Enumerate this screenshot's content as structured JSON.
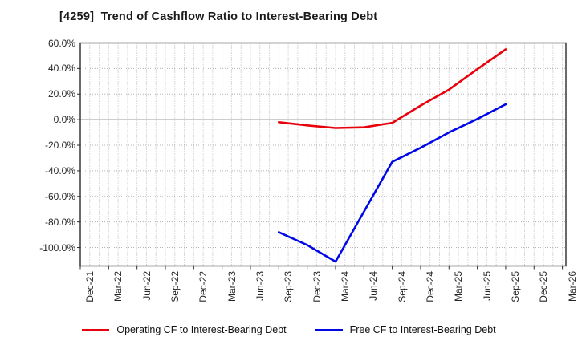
{
  "title": "[4259]  Trend of Cashflow Ratio to Interest-Bearing Debt",
  "chart_data": {
    "type": "line",
    "title": "[4259]  Trend of Cashflow Ratio to Interest-Bearing Debt",
    "x_categories": [
      "Dec-21",
      "Mar-22",
      "Jun-22",
      "Sep-22",
      "Dec-22",
      "Mar-23",
      "Jun-23",
      "Sep-23",
      "Dec-23",
      "Mar-24",
      "Jun-24",
      "Sep-24",
      "Dec-24",
      "Mar-25",
      "Jun-25",
      "Sep-25",
      "Dec-25",
      "Mar-26"
    ],
    "minor_gridlines_per_interval": 3,
    "ylim": [
      -114.4,
      60
    ],
    "ytick_values": [
      60,
      40,
      20,
      0,
      -20,
      -40,
      -60,
      -80,
      -100
    ],
    "ytick_labels": [
      "60.0%",
      "40.0%",
      "20.0%",
      "0.0%",
      "-20.0%",
      "-40.0%",
      "-60.0%",
      "-80.0%",
      "-100.0%"
    ],
    "grid": true,
    "legend_position": "bottom",
    "series": [
      {
        "name": "Operating CF to Interest-Bearing Debt",
        "color": "#e8000b",
        "x": [
          "Sep-23",
          "Dec-23",
          "Mar-24",
          "Jun-24",
          "Sep-24",
          "Dec-24",
          "Mar-25",
          "Jun-25",
          "Sep-25"
        ],
        "values": [
          -2,
          -4.5,
          -6.5,
          -6,
          -2.5,
          11,
          23.5,
          39.5,
          55
        ]
      },
      {
        "name": "Free CF to Interest-Bearing Debt",
        "color": "#0008e8",
        "x": [
          "Sep-23",
          "Dec-23",
          "Mar-24",
          "Jun-24",
          "Sep-24",
          "Dec-24",
          "Mar-25",
          "Jun-25",
          "Sep-25"
        ],
        "values": [
          -88,
          -98,
          -111,
          -72,
          -33,
          -22,
          -10,
          0.5,
          12
        ]
      }
    ]
  }
}
